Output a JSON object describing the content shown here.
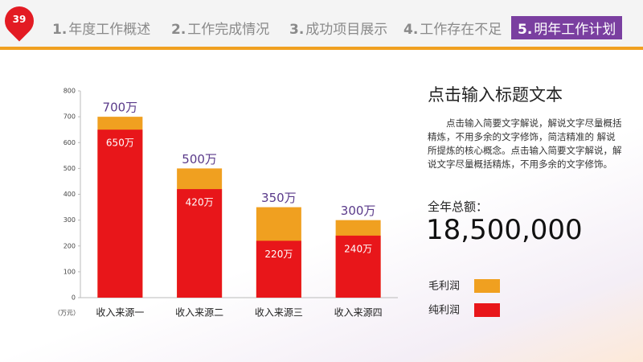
{
  "header": {
    "badge": "39",
    "tabs": [
      {
        "number": "1.",
        "label": "年度工作概述"
      },
      {
        "number": "2.",
        "label": "工作完成情况"
      },
      {
        "number": "3.",
        "label": "成功项目展示"
      },
      {
        "number": "4.",
        "label": "工作存在不足"
      },
      {
        "number": "5.",
        "label": "明年工作计划"
      }
    ],
    "active_tab": 4
  },
  "chart_data": {
    "type": "bar",
    "overlap": true,
    "y_unit_label": "（万元）",
    "categories": [
      "收入来源一",
      "收入来源二",
      "收入来源三",
      "收入来源四"
    ],
    "series": [
      {
        "name": "毛利润",
        "color": "#f0a020",
        "values": [
          700,
          500,
          350,
          300
        ],
        "value_labels": [
          "700万",
          "500万",
          "350万",
          "300万"
        ]
      },
      {
        "name": "纯利润",
        "color": "#e8161a",
        "values": [
          650,
          420,
          220,
          240
        ],
        "value_labels": [
          "650万",
          "420万",
          "220万",
          "240万"
        ]
      }
    ],
    "ylim": [
      0,
      800
    ],
    "yticks": [
      0,
      100,
      200,
      300,
      400,
      500,
      600,
      700,
      800
    ],
    "grid": false
  },
  "panel": {
    "title": "点击输入标题文本",
    "body": "点击输入简要文字解说，解说文字尽量概括精炼，不用多余的文字修饰，简洁精准的 解说所提炼的核心概念。点击输入简要文字解说，解说文字尽量概括精炼，不用多余的文字修饰。",
    "total_label": "全年总额：",
    "total_value": "18,500,000"
  }
}
